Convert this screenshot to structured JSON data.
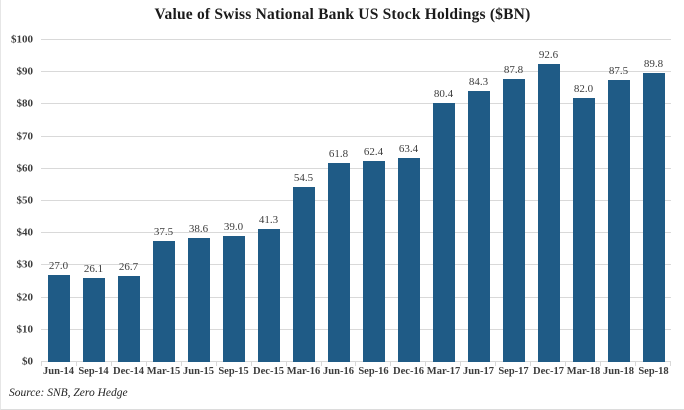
{
  "chart": {
    "title": "Value of Swiss National Bank US Stock Holdings ($BN)",
    "source": "Source: SNB, Zero Hedge"
  },
  "chart_data": {
    "type": "bar",
    "title": "Value of Swiss National Bank US Stock Holdings ($BN)",
    "categories": [
      "Jun-14",
      "Sep-14",
      "Dec-14",
      "Mar-15",
      "Jun-15",
      "Sep-15",
      "Dec-15",
      "Mar-16",
      "Jun-16",
      "Sep-16",
      "Dec-16",
      "Mar-17",
      "Jun-17",
      "Sep-17",
      "Dec-17",
      "Mar-18",
      "Jun-18",
      "Sep-18"
    ],
    "values": [
      27.0,
      26.1,
      26.7,
      37.5,
      38.6,
      39.0,
      41.3,
      54.5,
      61.8,
      62.4,
      63.4,
      80.4,
      84.3,
      87.8,
      92.6,
      82.0,
      87.5,
      89.8
    ],
    "value_labels": [
      "27.0",
      "26.1",
      "26.7",
      "37.5",
      "38.6",
      "39.0",
      "41.3",
      "54.5",
      "61.8",
      "62.4",
      "63.4",
      "80.4",
      "84.3",
      "87.8",
      "92.6",
      "82.0",
      "87.5",
      "89.8"
    ],
    "xlabel": "",
    "ylabel": "",
    "ylim": [
      0,
      100
    ],
    "ytick_labels": [
      "$0",
      "$10",
      "$20",
      "$30",
      "$40",
      "$50",
      "$60",
      "$70",
      "$80",
      "$90",
      "$100"
    ],
    "grid": true,
    "legend": false,
    "annotation": "Source: SNB, Zero Hedge",
    "colors": {
      "bar": "#1F5B86",
      "grid": "#D9D9D9",
      "text": "#3C3C3C",
      "title": "#1B1B1B"
    }
  }
}
